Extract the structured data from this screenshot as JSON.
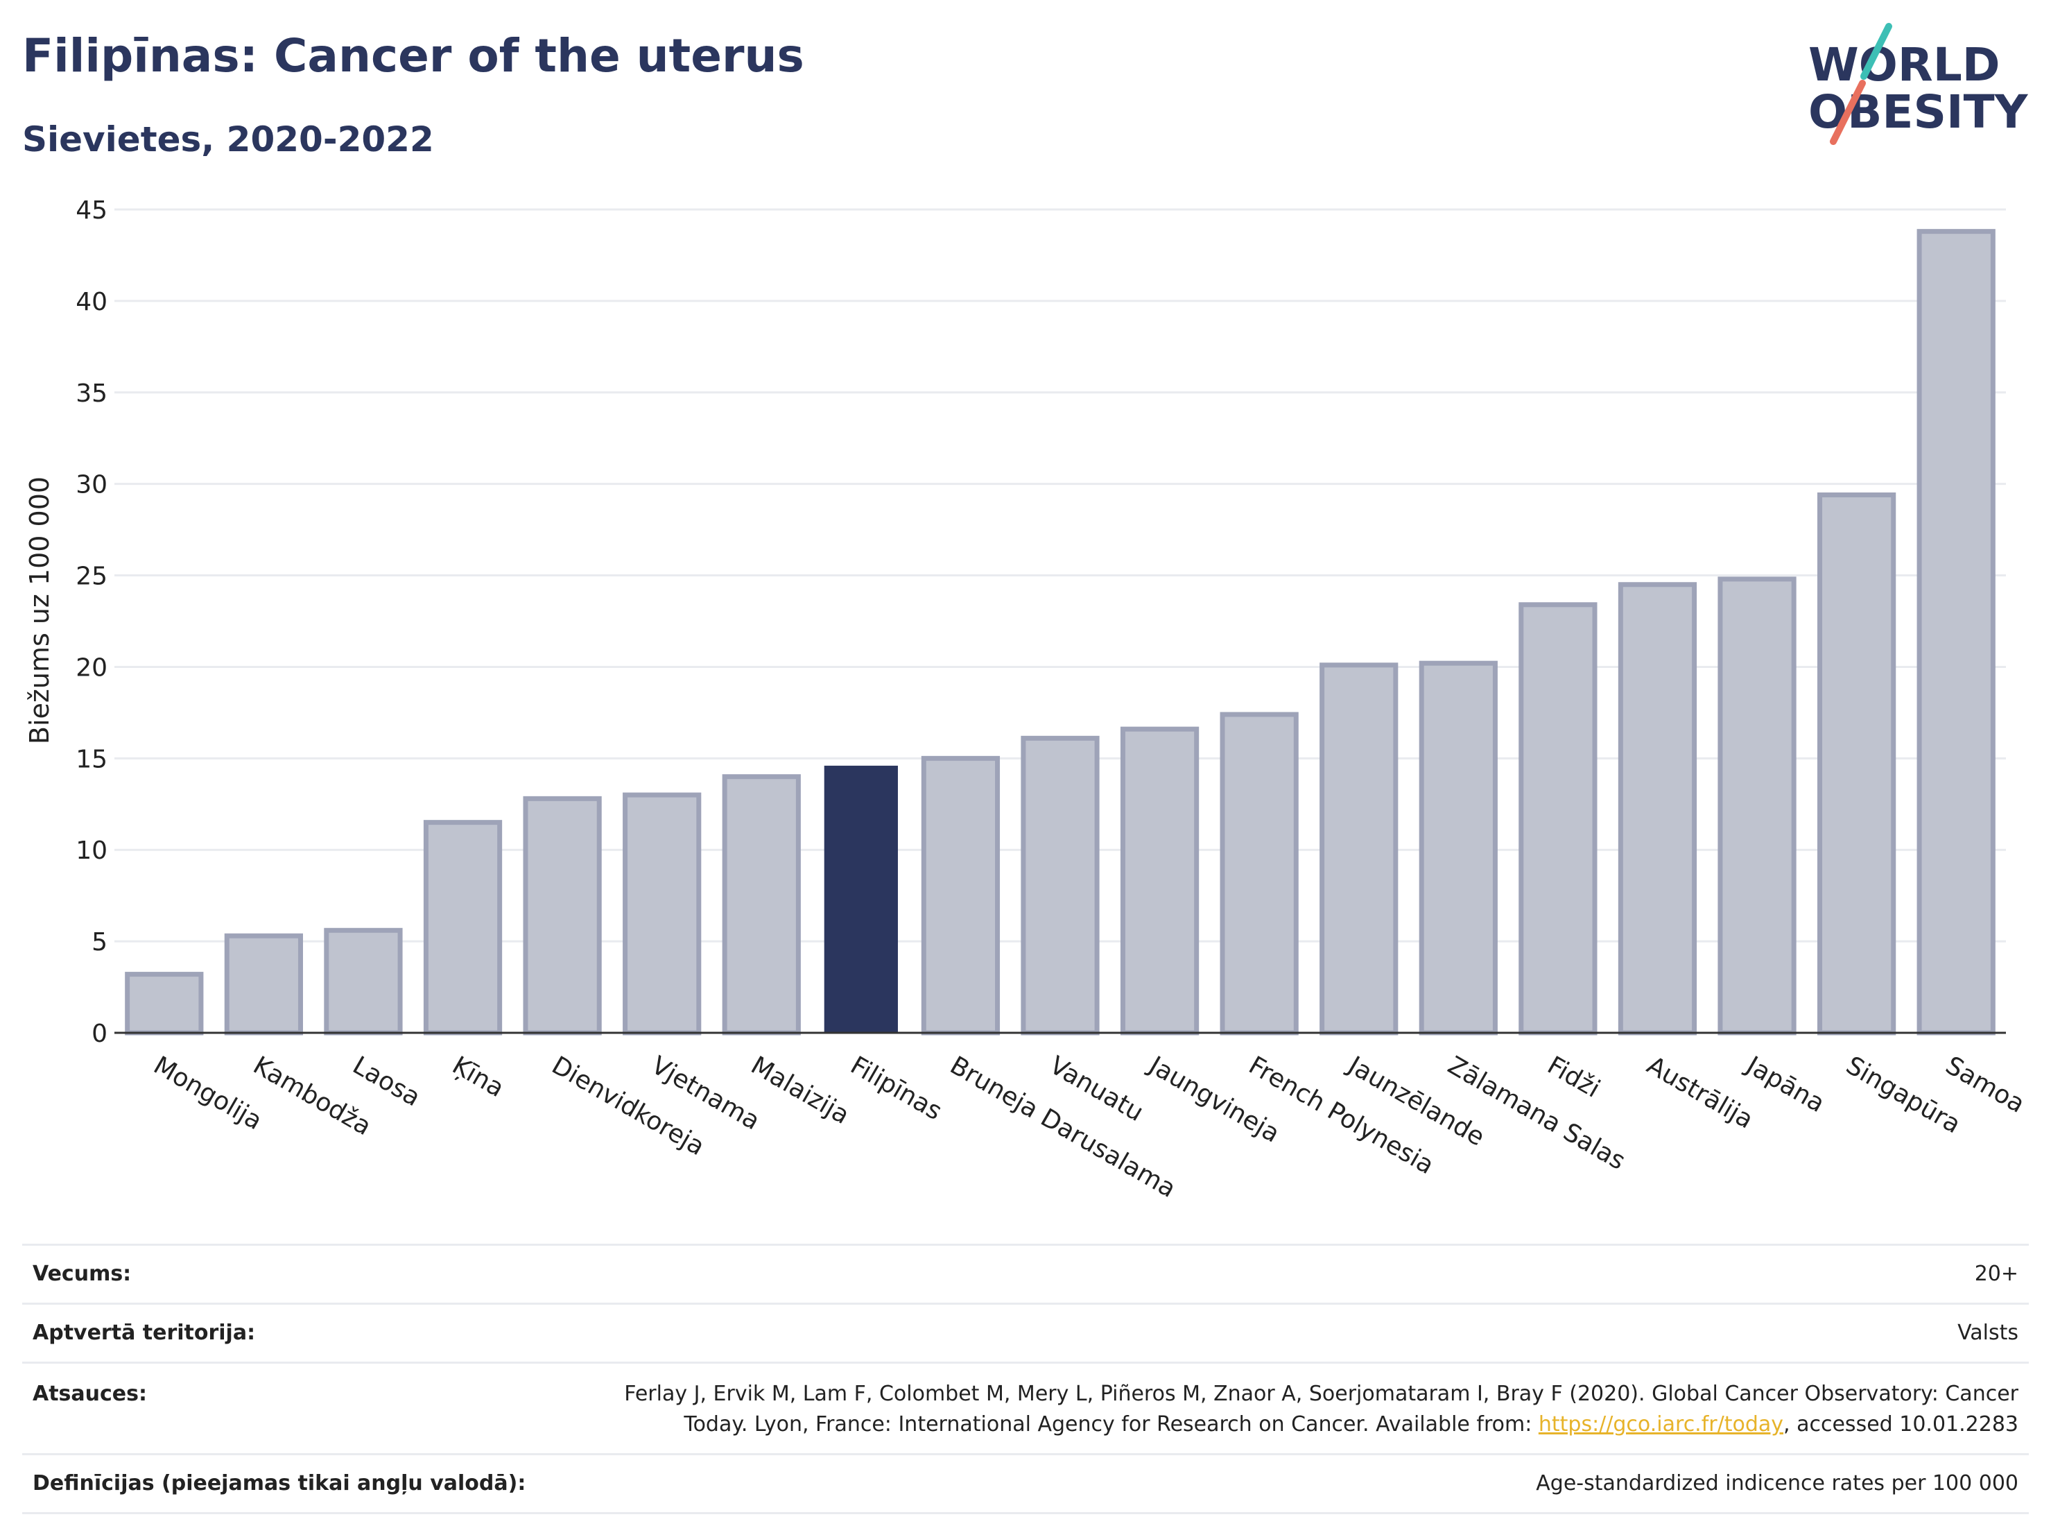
{
  "header": {
    "title": "Filipīnas: Cancer of the uterus",
    "subtitle": "Sievietes, 2020-2022"
  },
  "logo": {
    "line1": "WORLD",
    "line2": "OBESITY",
    "colors": {
      "text": "#2b365e",
      "teal": "#3dbfb5",
      "coral": "#e8705e"
    }
  },
  "chart_data": {
    "type": "bar",
    "ylabel": "Biežums uz 100 000",
    "ylim": [
      0,
      45
    ],
    "yticks": [
      0,
      5,
      10,
      15,
      20,
      25,
      30,
      35,
      40,
      45
    ],
    "grid": true,
    "highlight": "Filipīnas",
    "colors": {
      "bar": "#bfc3cf",
      "bar_border": "#9ea3b8",
      "highlight": "#2b365e",
      "grid": "#e9ebef",
      "axis": "#333333",
      "text": "#222222"
    },
    "categories": [
      "Mongolija",
      "Kambodža",
      "Laosa",
      "Ķīna",
      "Dienvidkoreja",
      "Vjetnama",
      "Malaizija",
      "Filipīnas",
      "Bruneja Darusalama",
      "Vanuatu",
      "Jaungvineja",
      "French Polynesia",
      "Jaunzēlande",
      "Zālamana Salas",
      "Fidži",
      "Austrālija",
      "Japāna",
      "Singapūra",
      "Samoa"
    ],
    "values": [
      3.2,
      5.3,
      5.6,
      11.5,
      12.8,
      13.0,
      14.0,
      14.6,
      15.0,
      16.1,
      16.6,
      17.4,
      20.1,
      20.2,
      23.4,
      24.5,
      24.8,
      29.4,
      43.8
    ]
  },
  "meta": [
    {
      "key": "Vecums:",
      "value": "20+"
    },
    {
      "key": "Aptvertā teritorija:",
      "value": "Valsts"
    },
    {
      "key": "Atsauces:",
      "value_line1": "Ferlay J, Ervik M, Lam F, Colombet M, Mery L, Piñeros M, Znaor A, Soerjomataram I, Bray F (2020). Global Cancer Observatory: Cancer",
      "value_line2_pre": "Today. Lyon, France: International Agency for Research on Cancer. Available from: ",
      "link": "https://gco.iarc.fr/today",
      "value_line2_post": ", accessed 10.01.2283"
    },
    {
      "key": "Definīcijas (pieejamas tikai angļu valodā):",
      "value": "Age-standardized indicence rates per 100 000"
    }
  ]
}
